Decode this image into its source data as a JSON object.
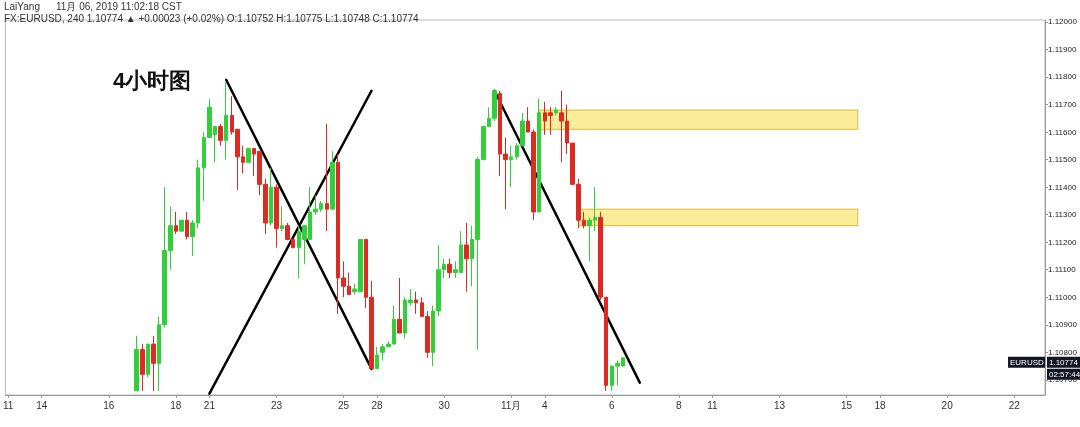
{
  "chart_data": {
    "type": "candlestick",
    "title": "4小时图",
    "categories": [
      "11",
      null,
      null,
      null,
      null,
      null,
      "14",
      null,
      null,
      null,
      null,
      null,
      null,
      null,
      null,
      null,
      null,
      null,
      "16",
      null,
      null,
      null,
      null,
      null,
      null,
      null,
      null,
      null,
      null,
      null,
      "18",
      null,
      null,
      null,
      null,
      null,
      "21",
      null,
      null,
      null,
      null,
      null,
      null,
      null,
      null,
      null,
      null,
      null,
      "23",
      null,
      null,
      null,
      null,
      null,
      null,
      null,
      null,
      null,
      null,
      null,
      "25",
      null,
      null,
      null,
      null,
      null,
      "28",
      null,
      null,
      null,
      null,
      null,
      null,
      null,
      null,
      null,
      null,
      null,
      "30",
      null,
      null,
      null,
      null,
      null,
      null,
      null,
      null,
      null,
      null,
      null,
      "11月",
      null,
      null,
      null,
      null,
      null,
      "4",
      null,
      null,
      null,
      null,
      null,
      null,
      null,
      null,
      null,
      null,
      null,
      "6",
      null,
      null,
      null,
      null,
      null,
      null,
      null,
      null,
      null,
      null,
      null,
      "8",
      null,
      null,
      null,
      null,
      null,
      "11",
      null,
      null,
      null,
      null,
      null,
      null,
      null,
      null,
      null,
      null,
      null,
      "13",
      null,
      null,
      null,
      null,
      null,
      null,
      null,
      null,
      null,
      null,
      null,
      "15",
      null,
      null,
      null,
      null,
      null,
      "18",
      null,
      null,
      null,
      null,
      null,
      null,
      null,
      null,
      null,
      null,
      null,
      "20",
      null,
      null,
      null,
      null,
      null,
      null,
      null,
      null,
      null,
      null,
      null,
      "22",
      null,
      null,
      null,
      null,
      null
    ],
    "ohlc": [
      null,
      null,
      null,
      null,
      null,
      null,
      null,
      null,
      null,
      null,
      null,
      null,
      null,
      null,
      null,
      null,
      null,
      null,
      null,
      null,
      null,
      null,
      null,
      [
        1.1066,
        1.1086,
        1.1066,
        1.1081
      ],
      [
        1.1081,
        1.1083,
        1.1066,
        1.1072
      ],
      [
        1.1072,
        1.1083,
        1.1071,
        1.1083
      ],
      [
        1.1083,
        1.1086,
        1.1066,
        1.1076
      ],
      [
        1.1076,
        1.1093,
        1.1066,
        1.109
      ],
      [
        1.109,
        1.114,
        1.1089,
        1.1117
      ],
      [
        1.1117,
        1.1133,
        1.111,
        1.1126
      ],
      [
        1.1126,
        1.1131,
        1.1123,
        1.1124
      ],
      [
        1.1124,
        1.1128,
        1.1124,
        1.1128
      ],
      [
        1.1128,
        1.1131,
        1.1121,
        1.1122
      ],
      [
        1.1122,
        1.1128,
        1.1115,
        1.1127
      ],
      [
        1.1127,
        1.115,
        1.1125,
        1.1147
      ],
      [
        1.1147,
        1.116,
        1.1135,
        1.1158
      ],
      [
        1.1158,
        1.1172,
        1.1158,
        1.1169
      ],
      [
        1.1159,
        1.1162,
        1.1149,
        1.1162
      ],
      [
        1.1162,
        1.1163,
        1.1155,
        1.1157
      ],
      [
        1.1157,
        1.1178,
        1.115,
        1.1166
      ],
      [
        1.1166,
        1.1173,
        1.1159,
        1.116
      ],
      [
        1.1161,
        1.1161,
        1.1139,
        1.1151
      ],
      [
        1.1151,
        1.1155,
        1.1145,
        1.1149
      ],
      [
        1.1149,
        1.1154,
        1.1149,
        1.1154
      ],
      [
        1.1154,
        1.1154,
        1.1144,
        1.1152
      ],
      [
        1.1153,
        1.1153,
        1.1137,
        1.1141
      ],
      [
        1.1141,
        1.1143,
        1.1123,
        1.1127
      ],
      [
        1.1127,
        1.1147,
        1.1126,
        1.114
      ],
      [
        1.114,
        1.1141,
        1.1118,
        1.1125
      ],
      [
        1.1125,
        1.1133,
        1.1124,
        1.1126
      ],
      [
        1.1126,
        1.1127,
        1.1121,
        1.1121
      ],
      [
        1.1121,
        1.1121,
        1.1118,
        1.1118
      ],
      [
        1.1118,
        1.1126,
        1.1107,
        1.1124
      ],
      [
        1.1121,
        1.1126,
        1.1112,
        1.1126
      ],
      [
        1.1121,
        1.114,
        1.1121,
        1.1131
      ],
      [
        1.1131,
        1.1137,
        1.113,
        1.1132
      ],
      [
        1.1132,
        1.1135,
        1.1131,
        1.1134
      ],
      [
        1.1134,
        1.1163,
        1.1124,
        1.1132
      ],
      [
        1.1132,
        1.1153,
        1.1132,
        1.1149
      ],
      [
        1.1149,
        1.1152,
        1.1094,
        1.1107
      ],
      [
        1.1107,
        1.1113,
        1.11,
        1.1104
      ],
      [
        1.1104,
        1.1109,
        1.1101,
        1.1101
      ],
      [
        1.1102,
        1.1105,
        1.1101,
        1.1103
      ],
      [
        1.1102,
        1.1121,
        1.1102,
        1.1121
      ],
      [
        1.1121,
        1.1121,
        1.1096,
        1.11
      ],
      [
        1.11,
        1.1106,
        1.1074,
        1.1074
      ],
      [
        1.1074,
        1.1082,
        1.1074,
        1.1079
      ],
      [
        1.108,
        1.1083,
        1.1077,
        1.1082
      ],
      [
        1.1082,
        1.1084,
        1.1082,
        1.1083
      ],
      [
        1.1083,
        1.1097,
        1.1083,
        1.1092
      ],
      [
        1.1092,
        1.1107,
        1.1087,
        1.1087
      ],
      [
        1.1087,
        1.11,
        1.1085,
        1.1099
      ],
      [
        1.1098,
        1.1103,
        1.1097,
        1.1099
      ],
      [
        1.1099,
        1.1102,
        1.1094,
        1.1098
      ],
      [
        1.1098,
        1.11,
        1.1093,
        1.1093
      ],
      [
        1.1093,
        1.1095,
        1.1078,
        1.108
      ],
      [
        1.108,
        1.1097,
        1.1075,
        1.1095
      ],
      [
        1.1095,
        1.1119,
        1.1093,
        1.111
      ],
      [
        1.111,
        1.1114,
        1.1107,
        1.1112
      ],
      [
        1.1112,
        1.1114,
        1.1107,
        1.1109
      ],
      [
        1.1109,
        1.1113,
        1.1107,
        1.111
      ],
      [
        1.1109,
        1.1124,
        1.1109,
        1.1119
      ],
      [
        1.1119,
        1.1127,
        1.1102,
        1.1114
      ],
      [
        1.1114,
        1.1126,
        1.1104,
        1.1121
      ],
      [
        1.1121,
        1.1151,
        1.1081,
        1.115
      ],
      [
        1.115,
        1.1162,
        1.115,
        1.1162
      ],
      [
        1.1162,
        1.1169,
        1.1162,
        1.1165
      ],
      [
        1.1165,
        1.1175,
        1.1164,
        1.1175
      ],
      [
        1.1174,
        1.1175,
        1.1144,
        1.1152
      ],
      [
        1.1152,
        1.1158,
        1.1132,
        1.115
      ],
      [
        1.115,
        1.1155,
        1.114,
        1.1151
      ],
      [
        1.1151,
        1.1156,
        1.115,
        1.1155
      ],
      [
        1.1155,
        1.1167,
        1.1155,
        1.1164
      ],
      [
        1.1164,
        1.1169,
        1.116,
        1.116
      ],
      [
        1.116,
        1.1161,
        1.1128,
        1.1131
      ],
      [
        1.1131,
        1.1172,
        1.1131,
        1.1167
      ],
      [
        1.1167,
        1.1171,
        1.1159,
        1.1164
      ],
      [
        1.1167,
        1.1169,
        1.1159,
        1.1166
      ],
      [
        1.1167,
        1.1169,
        1.1166,
        1.1168
      ],
      [
        1.1167,
        1.1175,
        1.1149,
        1.1164
      ],
      [
        1.1164,
        1.117,
        1.1152,
        1.1156
      ],
      [
        1.1156,
        1.1156,
        1.1141,
        1.1141
      ],
      [
        1.1141,
        1.1143,
        1.1125,
        1.1128
      ],
      [
        1.1128,
        1.1131,
        1.1125,
        1.1126
      ],
      [
        1.1126,
        1.1129,
        1.1113,
        1.1128
      ],
      [
        1.1128,
        1.114,
        1.1124,
        1.1129
      ],
      [
        1.1129,
        1.1131,
        1.1099,
        1.11
      ],
      [
        1.11,
        1.11,
        1.1066,
        1.1068
      ],
      [
        1.1068,
        1.1075,
        1.1066,
        1.1075
      ],
      [
        1.1075,
        1.1077,
        1.1068,
        1.1076
      ],
      [
        1.1075,
        1.1078,
        1.1075,
        1.1078
      ],
      null,
      null,
      null,
      null,
      null,
      null,
      null,
      null,
      null,
      null,
      null,
      null,
      null,
      null,
      null,
      null,
      null,
      null,
      null,
      null,
      null,
      null,
      null,
      null,
      null,
      null,
      null,
      null,
      null,
      null,
      null,
      null,
      null,
      null,
      null,
      null,
      null,
      null,
      null,
      null,
      null,
      null,
      null,
      null,
      null,
      null,
      null,
      null,
      null,
      null,
      null,
      null,
      null,
      null,
      null,
      null,
      null,
      null,
      null,
      null,
      null,
      null,
      null,
      null,
      null,
      null,
      null,
      null,
      null,
      null,
      null,
      null,
      null,
      null,
      null
    ],
    "series": [
      {
        "type": "line",
        "color": "#000000",
        "values": [
          null,
          null,
          null,
          null,
          null,
          null,
          null,
          null,
          null,
          null,
          null,
          null,
          null,
          null,
          null,
          null,
          null,
          null,
          null,
          null,
          null,
          null,
          null,
          null,
          null,
          null,
          null,
          null,
          null,
          null,
          null,
          null,
          null,
          null,
          null,
          null,
          null,
          null,
          null,
          1.1179,
          null,
          null,
          null,
          null,
          null,
          null,
          null,
          null,
          null,
          null,
          null,
          null,
          null,
          null,
          null,
          null,
          null,
          null,
          null,
          null,
          null,
          null,
          null,
          null,
          null,
          1.1074,
          null,
          null,
          null,
          null,
          null,
          null,
          null,
          null,
          null,
          null,
          null,
          null,
          null,
          null,
          null,
          null,
          null,
          null,
          null,
          null,
          null,
          null,
          null,
          null,
          null,
          null,
          null,
          null,
          null,
          null,
          null,
          null,
          null,
          null,
          null,
          null,
          null,
          null,
          null,
          null,
          null,
          null,
          null,
          null,
          null,
          null,
          null,
          null,
          null,
          null,
          null,
          null,
          null,
          null,
          null,
          null,
          null,
          null,
          null,
          null,
          null,
          null,
          null,
          null,
          null,
          null,
          null,
          null,
          null,
          null,
          null,
          null,
          null,
          null,
          null,
          null,
          null,
          null,
          null,
          null,
          null,
          null,
          null,
          null,
          null,
          null,
          null,
          null,
          null,
          null,
          null,
          null,
          null,
          null,
          null,
          null,
          null,
          null,
          null,
          null,
          null,
          null,
          null,
          null,
          null,
          null,
          null,
          null,
          null,
          null,
          null,
          null,
          null,
          null,
          null,
          null,
          null,
          null,
          null,
          null
        ]
      },
      {
        "type": "line",
        "color": "#000000",
        "values": [
          null,
          null,
          null,
          null,
          null,
          null,
          null,
          null,
          null,
          null,
          null,
          null,
          null,
          null,
          null,
          null,
          null,
          null,
          null,
          null,
          null,
          null,
          null,
          null,
          null,
          null,
          null,
          null,
          null,
          null,
          null,
          null,
          null,
          null,
          null,
          null,
          1.1065,
          null,
          null,
          null,
          null,
          null,
          null,
          null,
          null,
          null,
          null,
          null,
          null,
          null,
          null,
          null,
          null,
          null,
          null,
          null,
          null,
          null,
          null,
          null,
          null,
          null,
          null,
          null,
          null,
          1.1175,
          null,
          null,
          null,
          null,
          null,
          null,
          null,
          null,
          null,
          null,
          null,
          null,
          null,
          null,
          null,
          null,
          null,
          null,
          null,
          null,
          null,
          null,
          null,
          null,
          null,
          null,
          null,
          null,
          null,
          null,
          null,
          null,
          null,
          null,
          null,
          null,
          null,
          null,
          null,
          null,
          null,
          null,
          null,
          null,
          null,
          null,
          null,
          null,
          null,
          null,
          null,
          null,
          null,
          null,
          null,
          null,
          null,
          null,
          null,
          null,
          null,
          null,
          null,
          null,
          null,
          null,
          null,
          null,
          null,
          null,
          null,
          null,
          null,
          null,
          null,
          null,
          null,
          null,
          null,
          null,
          null,
          null,
          null,
          null,
          null,
          null,
          null,
          null,
          null,
          null,
          null,
          null,
          null,
          null,
          null,
          null,
          null,
          null,
          null,
          null,
          null,
          null,
          null,
          null,
          null,
          null,
          null,
          null,
          null,
          null,
          null,
          null,
          null,
          null,
          null,
          null,
          null,
          null,
          null,
          null
        ]
      },
      {
        "type": "line",
        "color": "#000000",
        "values": [
          null,
          null,
          null,
          null,
          null,
          null,
          null,
          null,
          null,
          null,
          null,
          null,
          null,
          null,
          null,
          null,
          null,
          null,
          null,
          null,
          null,
          null,
          null,
          null,
          null,
          null,
          null,
          null,
          null,
          null,
          null,
          null,
          null,
          null,
          null,
          null,
          null,
          null,
          null,
          null,
          null,
          null,
          null,
          null,
          null,
          null,
          null,
          null,
          null,
          null,
          null,
          null,
          null,
          null,
          null,
          null,
          null,
          null,
          null,
          null,
          null,
          null,
          null,
          null,
          null,
          null,
          null,
          null,
          null,
          null,
          null,
          null,
          null,
          null,
          null,
          null,
          null,
          null,
          null,
          null,
          null,
          null,
          null,
          null,
          null,
          null,
          null,
          1.1175,
          null,
          null,
          null,
          null,
          null,
          null,
          null,
          null,
          null,
          null,
          null,
          null,
          null,
          null,
          null,
          null,
          null,
          null,
          null,
          null,
          null,
          null,
          null,
          null,
          null,
          1.1069,
          null,
          null,
          null,
          null,
          null,
          null,
          null,
          null,
          null,
          null,
          null,
          null,
          null,
          null,
          null,
          null,
          null,
          null,
          null,
          null,
          null,
          null,
          null,
          null,
          null,
          null,
          null,
          null,
          null,
          null,
          null,
          null,
          null,
          null,
          null,
          null,
          null,
          null,
          null,
          null,
          null,
          null,
          null,
          null,
          null,
          null,
          null,
          null,
          null,
          null,
          null,
          null,
          null,
          null,
          null,
          null,
          null,
          null,
          null,
          null,
          null,
          null,
          null,
          null,
          null,
          null,
          null,
          null,
          null,
          null,
          null,
          null
        ]
      }
    ],
    "bands": [
      {
        "axis": "y",
        "from": 1.1161,
        "to": 1.1168,
        "color": "#fbe77a"
      },
      {
        "axis": "y",
        "from": 1.1126,
        "to": 1.1132,
        "color": "#fbe77a"
      }
    ],
    "ylim": [
      1.10645,
      1.12007
    ],
    "yticks": [
      {
        "value": 1.107,
        "label": "1.10700"
      },
      {
        "value": 1.108,
        "label": "1.10800"
      },
      {
        "value": 1.109,
        "label": "1.10900"
      },
      {
        "value": 1.11,
        "label": "1.11000"
      },
      {
        "value": 1.111,
        "label": "1.11100"
      },
      {
        "value": 1.112,
        "label": "1.11200"
      },
      {
        "value": 1.113,
        "label": "1.11300"
      },
      {
        "value": 1.114,
        "label": "1.11400"
      },
      {
        "value": 1.115,
        "label": "1.11500"
      },
      {
        "value": 1.116,
        "label": "1.11600"
      },
      {
        "value": 1.117,
        "label": "1.11700"
      },
      {
        "value": 1.118,
        "label": "1.11800"
      },
      {
        "value": 1.119,
        "label": "1.11900"
      },
      {
        "value": 1.12,
        "label": "1.12000"
      }
    ],
    "annotations": [
      "LaiYang",
      "11月 06, 2019 11:02:18 CST",
      "FX:EURUSD, 240 1.10774 ▲ +0.00023 (+0.02%) O:1.10752 H:1.10775 L:1.10748 C:1.10774",
      "EURUSD",
      "1.10774",
      "02:57:44"
    ]
  }
}
